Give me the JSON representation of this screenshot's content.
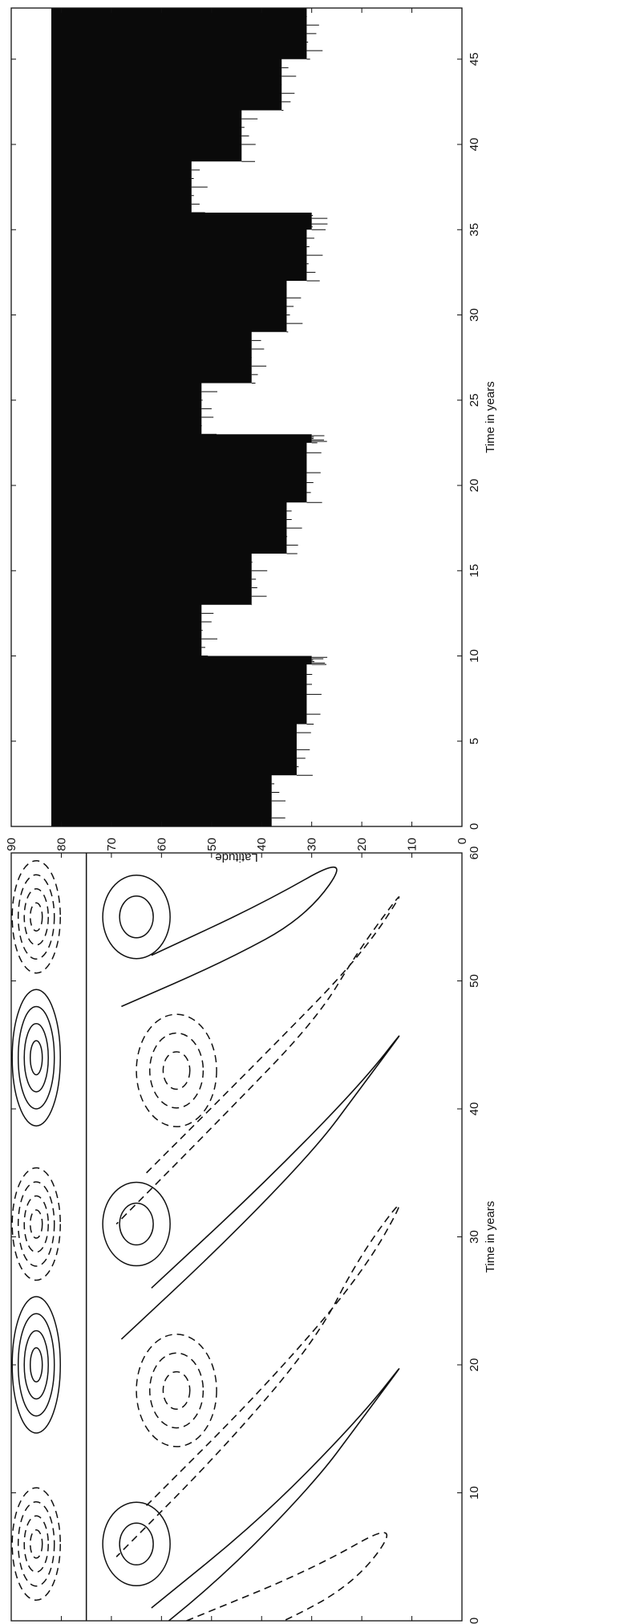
{
  "chart_data": [
    {
      "type": "contour",
      "orientation": "rotated-90-clockwise",
      "xlabel": "Time in years",
      "ylabel": "Latitude",
      "xlim": [
        0,
        60
      ],
      "ylim": [
        0,
        90
      ],
      "xticks": [
        "0",
        "10",
        "20",
        "30",
        "40",
        "50",
        "60"
      ],
      "yticks": [
        "0",
        "10",
        "20",
        "30",
        "40",
        "50",
        "60",
        "70",
        "80",
        "90"
      ],
      "line_styles": [
        "solid",
        "dashed"
      ],
      "series": [
        {
          "style": "solid",
          "x": [
            1,
            8,
            16,
            21
          ],
          "y": [
            62,
            40,
            20,
            10
          ]
        },
        {
          "style": "dashed",
          "x": [
            9,
            18,
            27,
            34
          ],
          "y": [
            63,
            40,
            20,
            10
          ]
        },
        {
          "style": "solid",
          "x": [
            26,
            34,
            42,
            47
          ],
          "y": [
            62,
            40,
            20,
            10
          ]
        },
        {
          "style": "dashed",
          "x": [
            35,
            44,
            52,
            58
          ],
          "y": [
            63,
            40,
            20,
            10
          ]
        },
        {
          "style": "solid",
          "x": [
            52,
            56,
            60
          ],
          "y": [
            62,
            40,
            22
          ]
        },
        {
          "style": "dashed",
          "x": [
            0,
            4,
            8
          ],
          "y": [
            55,
            30,
            12
          ]
        }
      ],
      "closed_solid_centers": [
        [
          20,
          85
        ],
        [
          44,
          85
        ],
        [
          6,
          65
        ],
        [
          31,
          65
        ],
        [
          55,
          65
        ]
      ],
      "closed_dashed_centers": [
        [
          6,
          85
        ],
        [
          31,
          85
        ],
        [
          55,
          85
        ],
        [
          18,
          57
        ],
        [
          43,
          57
        ]
      ]
    },
    {
      "type": "filled-area",
      "orientation": "rotated-90-clockwise",
      "xlabel": "Time in years",
      "ylabel": "Latitude",
      "xlim": [
        0,
        48
      ],
      "ylim": [
        0,
        90
      ],
      "xticks": [
        "0",
        "5",
        "10",
        "15",
        "20",
        "25",
        "30",
        "35",
        "40",
        "45"
      ],
      "yticks": [
        "0",
        "10",
        "20",
        "30",
        "40",
        "50",
        "60",
        "70",
        "80",
        "90"
      ],
      "upper_boundary_latitude": 82,
      "lower_boundary": {
        "x": [
          0,
          3,
          6,
          9.5,
          10,
          13,
          16,
          19,
          22.5,
          23,
          26,
          29,
          32,
          35,
          36,
          39,
          42,
          45,
          48
        ],
        "y": [
          38,
          33,
          31,
          30,
          52,
          42,
          35,
          31,
          30,
          52,
          42,
          35,
          31,
          30,
          54,
          44,
          36,
          31,
          30
        ]
      }
    }
  ]
}
